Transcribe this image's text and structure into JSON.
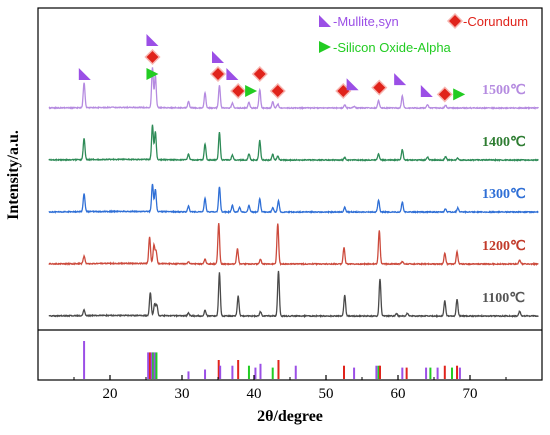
{
  "chart_data": {
    "type": "line",
    "xlabel": "2θ/degree",
    "ylabel": "Intensity/a.u.",
    "xlim": [
      10,
      80
    ],
    "x_ticks": [
      "20",
      "30",
      "40",
      "50",
      "60",
      "70"
    ],
    "x_tick_values": [
      20,
      30,
      40,
      50,
      60,
      70
    ],
    "y_ticks_shown": false,
    "grid": false,
    "legend": {
      "placement": "top-right",
      "entries": [
        {
          "name": "-Mullite,syn",
          "marker": "triangle-bl",
          "color": "#9B4FE6"
        },
        {
          "name": "-Corundum",
          "marker": "diamond",
          "color": "#E0231B"
        },
        {
          "name": "-Silicon Oxide-Alpha",
          "marker": "triangle-right",
          "color": "#22CC22"
        }
      ]
    },
    "series": [
      {
        "name": "1100℃",
        "color": "#4a4a4a",
        "baseline": 0.0,
        "scale": 1.0,
        "peaks": [
          [
            16.4,
            0.12
          ],
          [
            25.6,
            0.48
          ],
          [
            26.2,
            0.24
          ],
          [
            26.5,
            0.22
          ],
          [
            30.9,
            0.06
          ],
          [
            33.2,
            0.12
          ],
          [
            35.2,
            0.9
          ],
          [
            37.8,
            0.42
          ],
          [
            40.9,
            0.09
          ],
          [
            43.4,
            0.93
          ],
          [
            52.6,
            0.44
          ],
          [
            57.5,
            0.78
          ],
          [
            59.8,
            0.05
          ],
          [
            61.3,
            0.06
          ],
          [
            66.5,
            0.32
          ],
          [
            68.2,
            0.35
          ],
          [
            76.9,
            0.1
          ]
        ]
      },
      {
        "name": "1200℃",
        "color": "#cc4a3c",
        "baseline": 1.0,
        "scale": 0.85,
        "peaks": [
          [
            16.4,
            0.18
          ],
          [
            25.5,
            0.65
          ],
          [
            26.1,
            0.45
          ],
          [
            26.4,
            0.3
          ],
          [
            30.9,
            0.05
          ],
          [
            33.2,
            0.12
          ],
          [
            35.1,
            1.0
          ],
          [
            37.7,
            0.38
          ],
          [
            40.9,
            0.12
          ],
          [
            43.3,
            1.0
          ],
          [
            52.5,
            0.4
          ],
          [
            57.4,
            0.82
          ],
          [
            60.6,
            0.06
          ],
          [
            66.5,
            0.26
          ],
          [
            68.2,
            0.3
          ],
          [
            76.9,
            0.09
          ]
        ]
      },
      {
        "name": "1300℃",
        "color": "#2f6fd6",
        "baseline": 2.0,
        "scale": 0.85,
        "peaks": [
          [
            16.4,
            0.45
          ],
          [
            25.9,
            0.68
          ],
          [
            26.3,
            0.55
          ],
          [
            30.9,
            0.14
          ],
          [
            33.2,
            0.33
          ],
          [
            35.2,
            0.62
          ],
          [
            37.0,
            0.16
          ],
          [
            38.0,
            0.12
          ],
          [
            39.3,
            0.16
          ],
          [
            40.8,
            0.33
          ],
          [
            42.6,
            0.1
          ],
          [
            43.4,
            0.28
          ],
          [
            52.6,
            0.12
          ],
          [
            57.3,
            0.3
          ],
          [
            60.6,
            0.24
          ],
          [
            66.6,
            0.08
          ],
          [
            68.3,
            0.1
          ]
        ]
      },
      {
        "name": "1400℃",
        "color": "#2e8b57",
        "baseline": 3.0,
        "scale": 0.85,
        "peaks": [
          [
            16.4,
            0.52
          ],
          [
            25.9,
            0.85
          ],
          [
            26.3,
            0.7
          ],
          [
            30.9,
            0.14
          ],
          [
            33.2,
            0.4
          ],
          [
            35.2,
            0.68
          ],
          [
            37.0,
            0.12
          ],
          [
            39.3,
            0.15
          ],
          [
            40.8,
            0.48
          ],
          [
            42.6,
            0.14
          ],
          [
            43.3,
            0.1
          ],
          [
            52.6,
            0.06
          ],
          [
            57.3,
            0.15
          ],
          [
            60.6,
            0.26
          ],
          [
            64.1,
            0.07
          ],
          [
            66.6,
            0.08
          ],
          [
            68.3,
            0.05
          ]
        ]
      },
      {
        "name": "1500℃",
        "color": "#b58be0",
        "baseline": 4.0,
        "scale": 0.85,
        "peaks": [
          [
            16.4,
            0.62
          ],
          [
            25.9,
            0.98
          ],
          [
            26.3,
            0.8
          ],
          [
            30.9,
            0.15
          ],
          [
            33.2,
            0.38
          ],
          [
            35.2,
            0.55
          ],
          [
            37.0,
            0.12
          ],
          [
            39.3,
            0.14
          ],
          [
            40.8,
            0.45
          ],
          [
            42.6,
            0.16
          ],
          [
            43.3,
            0.1
          ],
          [
            52.6,
            0.08
          ],
          [
            53.9,
            0.04
          ],
          [
            57.3,
            0.18
          ],
          [
            60.6,
            0.3
          ],
          [
            64.1,
            0.08
          ],
          [
            66.6,
            0.07
          ]
        ]
      }
    ],
    "annotations": [
      {
        "x": 16.5,
        "level": 0,
        "marker": "triangle-bl"
      },
      {
        "x": 25.9,
        "level": 2,
        "marker": "triangle-bl"
      },
      {
        "x": 25.9,
        "level": 1,
        "marker": "diamond"
      },
      {
        "x": 25.9,
        "level": 0,
        "marker": "triangle-right"
      },
      {
        "x": 35.0,
        "level": 1,
        "marker": "triangle-bl"
      },
      {
        "x": 35.0,
        "level": 0,
        "marker": "diamond"
      },
      {
        "x": 37.0,
        "level": 0,
        "marker": "triangle-bl"
      },
      {
        "x": 37.8,
        "level": -1,
        "marker": "diamond"
      },
      {
        "x": 40.8,
        "level": 0,
        "marker": "diamond"
      },
      {
        "x": 39.6,
        "level": -1,
        "marker": "triangle-right"
      },
      {
        "x": 43.3,
        "level": -1,
        "marker": "diamond"
      },
      {
        "x": 52.4,
        "level": -1,
        "marker": "diamond"
      },
      {
        "x": 53.7,
        "level": -0.6,
        "marker": "triangle-bl"
      },
      {
        "x": 57.4,
        "level": -0.8,
        "marker": "diamond"
      },
      {
        "x": 60.3,
        "level": -0.3,
        "marker": "triangle-bl"
      },
      {
        "x": 64.0,
        "level": -1,
        "marker": "triangle-bl"
      },
      {
        "x": 66.5,
        "level": -1.2,
        "marker": "diamond"
      },
      {
        "x": 68.5,
        "level": -1.2,
        "marker": "triangle-right"
      }
    ],
    "reference_lines": [
      {
        "x": 16.4,
        "h": 1.0,
        "color": "#9B4FE6"
      },
      {
        "x": 25.3,
        "h": 0.7,
        "color": "#9B4FE6"
      },
      {
        "x": 25.55,
        "h": 0.7,
        "color": "#E0231B"
      },
      {
        "x": 25.8,
        "h": 0.7,
        "color": "#9B4FE6"
      },
      {
        "x": 26.0,
        "h": 0.7,
        "color": "#22CC22"
      },
      {
        "x": 26.2,
        "h": 0.7,
        "color": "#9B4FE6"
      },
      {
        "x": 26.45,
        "h": 0.7,
        "color": "#22CC22"
      },
      {
        "x": 30.9,
        "h": 0.2,
        "color": "#9B4FE6"
      },
      {
        "x": 33.2,
        "h": 0.25,
        "color": "#9B4FE6"
      },
      {
        "x": 35.1,
        "h": 0.5,
        "color": "#E0231B"
      },
      {
        "x": 35.3,
        "h": 0.35,
        "color": "#9B4FE6"
      },
      {
        "x": 37.0,
        "h": 0.35,
        "color": "#9B4FE6"
      },
      {
        "x": 37.8,
        "h": 0.5,
        "color": "#E0231B"
      },
      {
        "x": 39.3,
        "h": 0.35,
        "color": "#22CC22"
      },
      {
        "x": 40.2,
        "h": 0.3,
        "color": "#9B4FE6"
      },
      {
        "x": 40.9,
        "h": 0.4,
        "color": "#9B4FE6"
      },
      {
        "x": 42.6,
        "h": 0.3,
        "color": "#22CC22"
      },
      {
        "x": 43.4,
        "h": 0.5,
        "color": "#E0231B"
      },
      {
        "x": 45.8,
        "h": 0.35,
        "color": "#9B4FE6"
      },
      {
        "x": 52.5,
        "h": 0.35,
        "color": "#E0231B"
      },
      {
        "x": 53.9,
        "h": 0.3,
        "color": "#9B4FE6"
      },
      {
        "x": 57.0,
        "h": 0.35,
        "color": "#9B4FE6"
      },
      {
        "x": 57.3,
        "h": 0.35,
        "color": "#22CC22"
      },
      {
        "x": 57.5,
        "h": 0.35,
        "color": "#E0231B"
      },
      {
        "x": 60.6,
        "h": 0.3,
        "color": "#9B4FE6"
      },
      {
        "x": 61.2,
        "h": 0.3,
        "color": "#E0231B"
      },
      {
        "x": 63.9,
        "h": 0.3,
        "color": "#9B4FE6"
      },
      {
        "x": 64.5,
        "h": 0.3,
        "color": "#22CC22"
      },
      {
        "x": 65.5,
        "h": 0.3,
        "color": "#9B4FE6"
      },
      {
        "x": 66.5,
        "h": 0.35,
        "color": "#E0231B"
      },
      {
        "x": 67.5,
        "h": 0.3,
        "color": "#22CC22"
      },
      {
        "x": 68.2,
        "h": 0.35,
        "color": "#E0231B"
      },
      {
        "x": 68.6,
        "h": 0.3,
        "color": "#9B4FE6"
      }
    ]
  }
}
